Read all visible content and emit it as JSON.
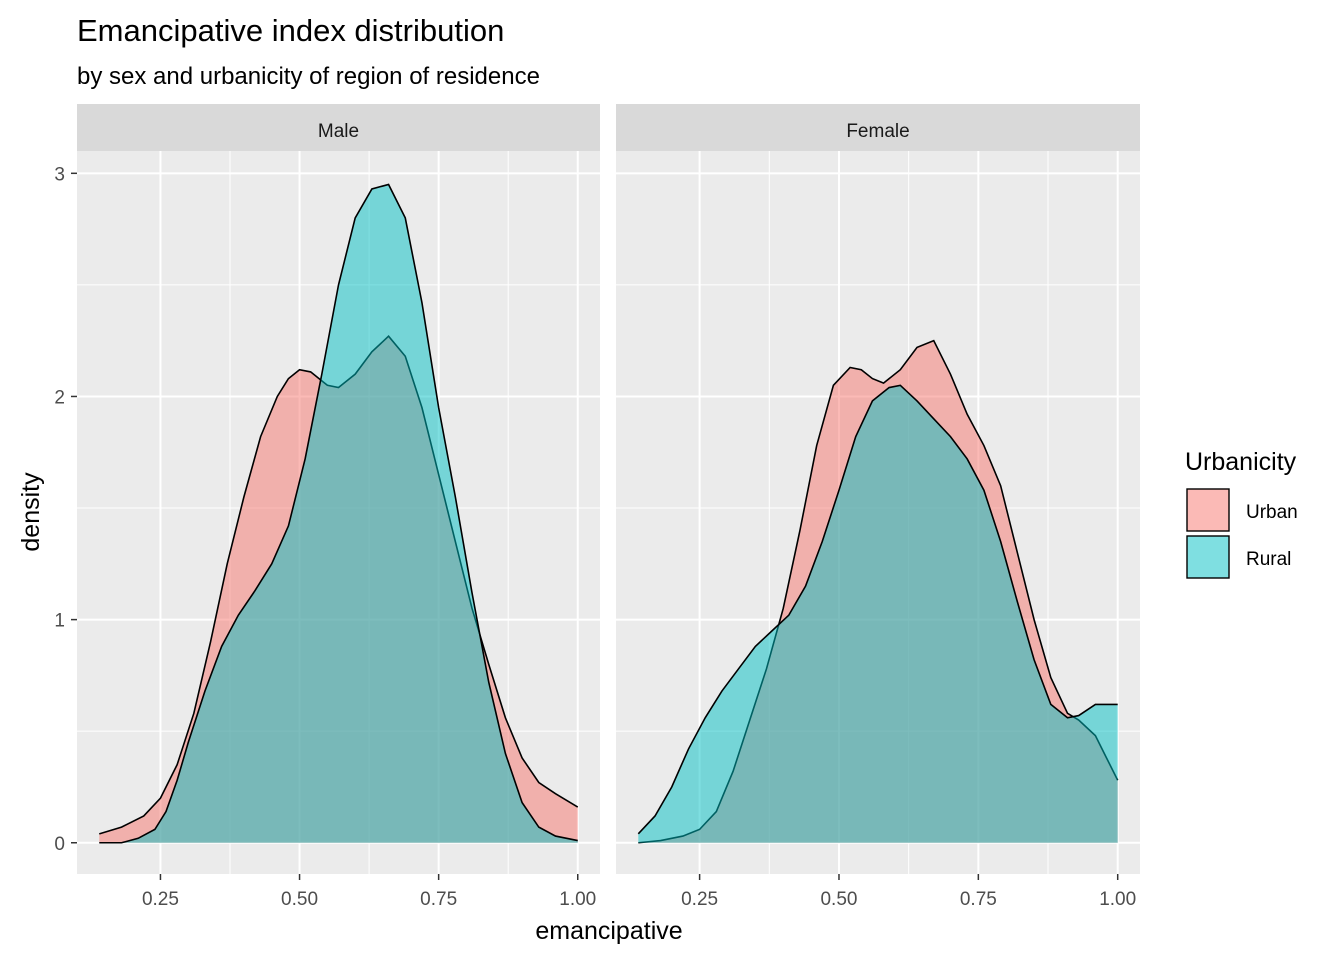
{
  "chart_data": {
    "type": "area",
    "title": "Emancipative index distribution",
    "subtitle": "by sex and urbanicity of region of residence",
    "xlabel": "emancipative",
    "ylabel": "density",
    "xlim": [
      0.1,
      1.04
    ],
    "ylim": [
      -0.14,
      3.1
    ],
    "xticks": [
      0.25,
      0.5,
      0.75,
      1.0
    ],
    "xtick_labels": [
      "0.25",
      "0.50",
      "0.75",
      "1.00"
    ],
    "yticks": [
      0,
      1,
      2,
      3
    ],
    "ytick_labels": [
      "0",
      "1",
      "2",
      "3"
    ],
    "legend": {
      "title": "Urbanicity",
      "placement": "right",
      "entries": [
        {
          "label": "Urban",
          "color": "#F8766D"
        },
        {
          "label": "Rural",
          "color": "#00BFC4"
        }
      ]
    },
    "fill_opacity": 0.5,
    "grid": true,
    "panels": [
      {
        "label": "Male",
        "series": [
          {
            "name": "Urban",
            "x": [
              0.14,
              0.18,
              0.22,
              0.25,
              0.28,
              0.31,
              0.34,
              0.37,
              0.4,
              0.43,
              0.46,
              0.48,
              0.5,
              0.52,
              0.55,
              0.57,
              0.6,
              0.63,
              0.66,
              0.69,
              0.72,
              0.75,
              0.78,
              0.81,
              0.84,
              0.87,
              0.9,
              0.93,
              0.96,
              1.0
            ],
            "y": [
              0.04,
              0.07,
              0.12,
              0.2,
              0.35,
              0.58,
              0.9,
              1.25,
              1.55,
              1.82,
              2.0,
              2.08,
              2.12,
              2.11,
              2.05,
              2.04,
              2.1,
              2.2,
              2.27,
              2.18,
              1.95,
              1.65,
              1.35,
              1.05,
              0.8,
              0.56,
              0.38,
              0.27,
              0.22,
              0.16
            ]
          },
          {
            "name": "Rural",
            "x": [
              0.14,
              0.18,
              0.21,
              0.24,
              0.26,
              0.28,
              0.3,
              0.33,
              0.36,
              0.39,
              0.42,
              0.45,
              0.48,
              0.51,
              0.54,
              0.57,
              0.6,
              0.63,
              0.66,
              0.69,
              0.72,
              0.75,
              0.78,
              0.81,
              0.84,
              0.87,
              0.9,
              0.93,
              0.96,
              1.0
            ],
            "y": [
              0.0,
              0.0,
              0.02,
              0.06,
              0.14,
              0.28,
              0.45,
              0.68,
              0.88,
              1.02,
              1.13,
              1.25,
              1.42,
              1.72,
              2.1,
              2.5,
              2.8,
              2.93,
              2.95,
              2.8,
              2.42,
              1.95,
              1.55,
              1.12,
              0.72,
              0.4,
              0.18,
              0.07,
              0.03,
              0.01
            ]
          }
        ]
      },
      {
        "label": "Female",
        "series": [
          {
            "name": "Urban",
            "x": [
              0.14,
              0.18,
              0.22,
              0.25,
              0.28,
              0.31,
              0.34,
              0.37,
              0.4,
              0.43,
              0.46,
              0.49,
              0.52,
              0.54,
              0.56,
              0.58,
              0.61,
              0.64,
              0.67,
              0.7,
              0.73,
              0.76,
              0.79,
              0.82,
              0.85,
              0.88,
              0.91,
              0.93,
              0.96,
              0.98,
              1.0
            ],
            "y": [
              0.0,
              0.01,
              0.03,
              0.06,
              0.14,
              0.32,
              0.55,
              0.78,
              1.05,
              1.4,
              1.78,
              2.05,
              2.13,
              2.12,
              2.08,
              2.06,
              2.12,
              2.22,
              2.25,
              2.1,
              1.92,
              1.78,
              1.6,
              1.3,
              1.0,
              0.74,
              0.58,
              0.55,
              0.48,
              0.38,
              0.28
            ]
          },
          {
            "name": "Rural",
            "x": [
              0.14,
              0.17,
              0.2,
              0.23,
              0.26,
              0.29,
              0.32,
              0.35,
              0.38,
              0.41,
              0.44,
              0.47,
              0.5,
              0.53,
              0.56,
              0.59,
              0.61,
              0.64,
              0.67,
              0.7,
              0.73,
              0.76,
              0.79,
              0.82,
              0.85,
              0.88,
              0.91,
              0.93,
              0.96,
              0.99,
              1.0
            ],
            "y": [
              0.04,
              0.12,
              0.25,
              0.42,
              0.56,
              0.68,
              0.78,
              0.88,
              0.95,
              1.02,
              1.15,
              1.35,
              1.58,
              1.82,
              1.98,
              2.04,
              2.05,
              1.98,
              1.9,
              1.82,
              1.72,
              1.58,
              1.35,
              1.08,
              0.82,
              0.62,
              0.56,
              0.57,
              0.62,
              0.62,
              0.62
            ]
          }
        ]
      }
    ]
  }
}
